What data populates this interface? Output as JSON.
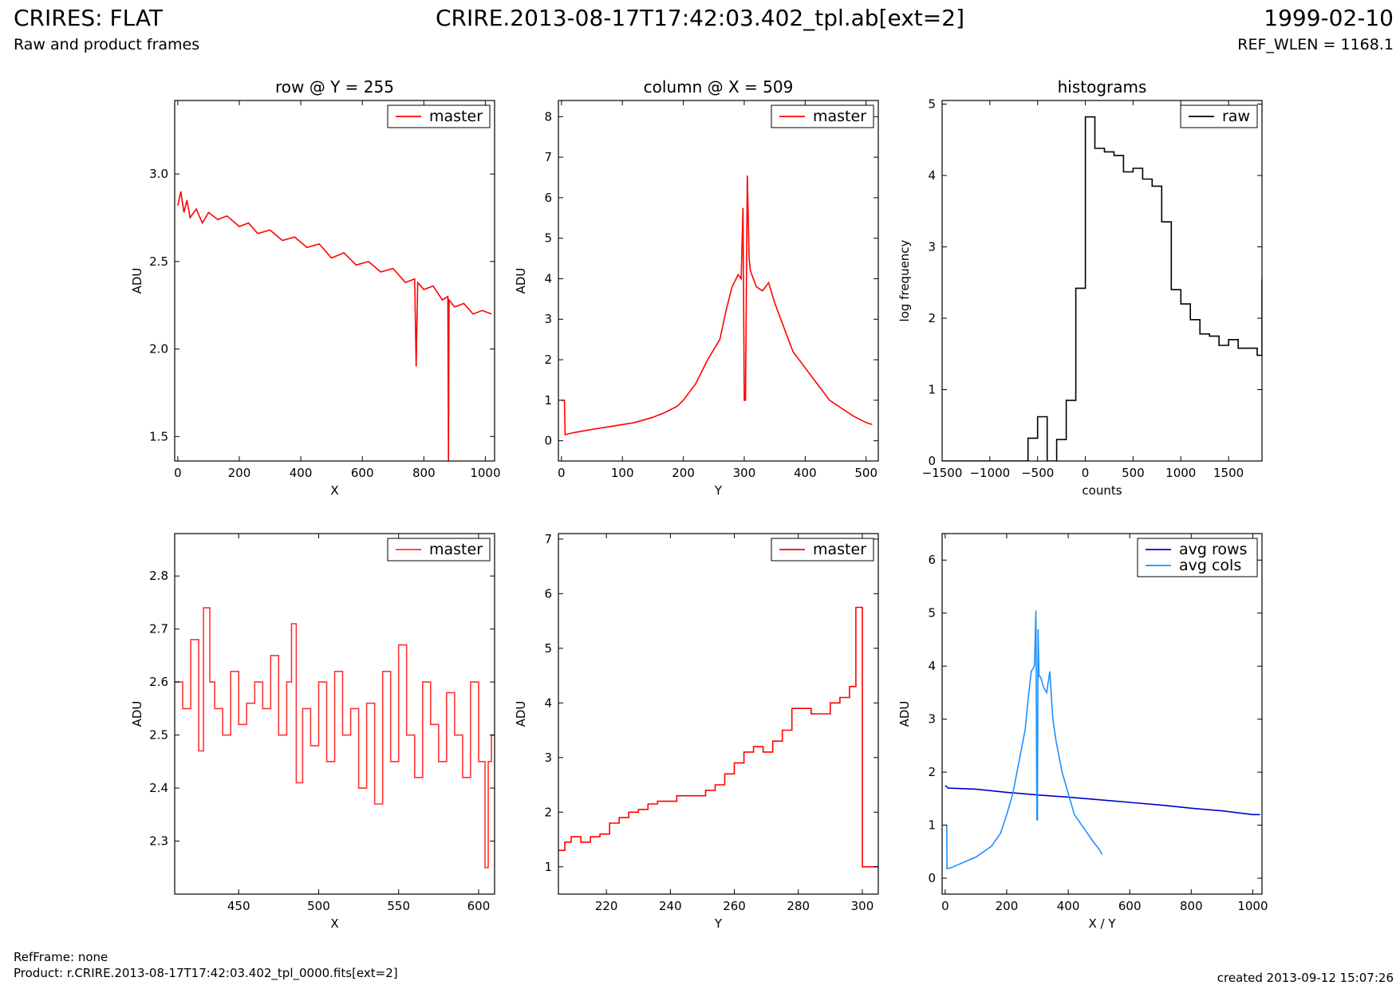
{
  "header": {
    "app_title": "CRIRES: FLAT",
    "subtitle": "Raw and product frames",
    "file_title": "CRIRE.2013-08-17T17:42:03.402_tpl.ab[ext=2]",
    "date": "1999-02-10",
    "ref_wlen": "REF_WLEN = 1168.1"
  },
  "footer": {
    "ref_frame": "RefFrame: none",
    "product": "Product: r.CRIRE.2013-08-17T17:42:03.402_tpl_0000.fits[ext=2]",
    "created": "created 2013-09-12 15:07:26"
  },
  "chart_data": [
    {
      "id": "row-full",
      "type": "line",
      "title": "row @ Y = 255",
      "xlabel": "X",
      "ylabel": "ADU",
      "xlim": [
        -10,
        1030
      ],
      "ylim": [
        1.36,
        3.42
      ],
      "xticks": [
        0,
        200,
        400,
        600,
        800,
        1000
      ],
      "yticks": [
        1.5,
        2.0,
        2.5,
        3.0
      ],
      "ytick_labels": [
        "1.5",
        "2.0",
        "2.5",
        "3.0"
      ],
      "legend": "upper right",
      "series": [
        {
          "name": "master",
          "color": "#ff0000",
          "x": [
            0,
            10,
            20,
            30,
            40,
            60,
            80,
            100,
            130,
            160,
            200,
            230,
            260,
            300,
            340,
            380,
            420,
            460,
            500,
            540,
            580,
            620,
            660,
            700,
            740,
            770,
            775,
            780,
            800,
            830,
            860,
            878,
            880,
            882,
            900,
            930,
            960,
            990,
            1020
          ],
          "y": [
            2.82,
            2.9,
            2.78,
            2.85,
            2.75,
            2.8,
            2.72,
            2.78,
            2.74,
            2.76,
            2.7,
            2.72,
            2.66,
            2.68,
            2.62,
            2.64,
            2.58,
            2.6,
            2.52,
            2.55,
            2.48,
            2.5,
            2.44,
            2.46,
            2.38,
            2.4,
            1.9,
            2.38,
            2.34,
            2.36,
            2.28,
            2.3,
            1.36,
            2.28,
            2.24,
            2.26,
            2.2,
            2.22,
            2.2
          ]
        }
      ]
    },
    {
      "id": "col-full",
      "type": "line",
      "title": "column @ X = 509",
      "xlabel": "Y",
      "ylabel": "ADU",
      "xlim": [
        -5,
        520
      ],
      "ylim": [
        -0.5,
        8.4
      ],
      "xticks": [
        0,
        100,
        200,
        300,
        400,
        500
      ],
      "yticks": [
        0,
        1,
        2,
        3,
        4,
        5,
        6,
        7,
        8
      ],
      "ytick_labels": [
        "0",
        "1",
        "2",
        "3",
        "4",
        "5",
        "6",
        "7",
        "8"
      ],
      "legend": "upper right",
      "series": [
        {
          "name": "master",
          "color": "#ff0000",
          "x": [
            0,
            5,
            6,
            20,
            50,
            80,
            100,
            120,
            150,
            170,
            190,
            200,
            220,
            240,
            260,
            270,
            280,
            290,
            295,
            298,
            300,
            302,
            305,
            308,
            310,
            320,
            330,
            340,
            350,
            360,
            370,
            380,
            400,
            420,
            440,
            460,
            480,
            500,
            510
          ],
          "y": [
            1.0,
            1.0,
            0.15,
            0.2,
            0.28,
            0.35,
            0.4,
            0.45,
            0.58,
            0.7,
            0.85,
            1.0,
            1.4,
            2.0,
            2.5,
            3.2,
            3.8,
            4.1,
            4.0,
            5.75,
            1.0,
            1.0,
            6.55,
            4.5,
            4.2,
            3.8,
            3.7,
            3.9,
            3.4,
            3.0,
            2.6,
            2.2,
            1.8,
            1.4,
            1.0,
            0.8,
            0.6,
            0.45,
            0.4
          ]
        }
      ]
    },
    {
      "id": "hist",
      "type": "line",
      "title": "histograms",
      "xlabel": "counts",
      "ylabel": "log frequency",
      "xlim": [
        -1500,
        1850
      ],
      "ylim": [
        0,
        5.05
      ],
      "xticks": [
        -1500,
        -1000,
        -500,
        0,
        500,
        1000,
        1500
      ],
      "xtick_labels": [
        "−1500",
        "−1000",
        "−500",
        "0",
        "500",
        "1000",
        "1500"
      ],
      "yticks": [
        0,
        1,
        2,
        3,
        4,
        5
      ],
      "ytick_labels": [
        "0",
        "1",
        "2",
        "3",
        "4",
        "5"
      ],
      "legend": "upper right",
      "series": [
        {
          "name": "raw",
          "color": "#000000",
          "step": true,
          "x": [
            -1500,
            -600,
            -500,
            -400,
            -300,
            -200,
            -100,
            0,
            100,
            200,
            300,
            400,
            500,
            600,
            700,
            800,
            900,
            1000,
            1100,
            1200,
            1300,
            1400,
            1500,
            1600,
            1700,
            1800,
            1850
          ],
          "y": [
            0,
            0.32,
            0.62,
            0,
            0.3,
            0.85,
            2.42,
            4.82,
            4.38,
            4.33,
            4.28,
            4.05,
            4.1,
            3.95,
            3.85,
            3.35,
            2.4,
            2.2,
            1.98,
            1.78,
            1.75,
            1.62,
            1.7,
            1.58,
            1.58,
            1.48,
            2.55
          ]
        }
      ]
    },
    {
      "id": "row-zoom",
      "type": "line",
      "title": "",
      "xlabel": "X",
      "ylabel": "ADU",
      "xlim": [
        410,
        610
      ],
      "ylim": [
        2.2,
        2.88
      ],
      "xticks": [
        450,
        500,
        550,
        600
      ],
      "yticks": [
        2.3,
        2.4,
        2.5,
        2.6,
        2.7,
        2.8
      ],
      "ytick_labels": [
        "2.3",
        "2.4",
        "2.5",
        "2.6",
        "2.7",
        "2.8"
      ],
      "legend": "upper right",
      "series": [
        {
          "name": "master",
          "color": "#ff3333",
          "step": true,
          "x": [
            410,
            415,
            420,
            425,
            428,
            432,
            435,
            440,
            445,
            450,
            455,
            460,
            465,
            470,
            475,
            480,
            483,
            486,
            490,
            495,
            500,
            505,
            510,
            515,
            520,
            525,
            530,
            535,
            540,
            545,
            550,
            555,
            560,
            565,
            570,
            575,
            580,
            585,
            590,
            595,
            600,
            604,
            606,
            608,
            610
          ],
          "y": [
            2.6,
            2.55,
            2.68,
            2.47,
            2.74,
            2.6,
            2.55,
            2.5,
            2.62,
            2.52,
            2.56,
            2.6,
            2.55,
            2.65,
            2.5,
            2.6,
            2.71,
            2.41,
            2.55,
            2.48,
            2.6,
            2.45,
            2.62,
            2.5,
            2.55,
            2.4,
            2.56,
            2.37,
            2.62,
            2.45,
            2.67,
            2.5,
            2.42,
            2.6,
            2.52,
            2.45,
            2.58,
            2.5,
            2.42,
            2.6,
            2.45,
            2.25,
            2.45,
            2.5,
            2.5
          ]
        }
      ]
    },
    {
      "id": "col-zoom",
      "type": "line",
      "title": "",
      "xlabel": "Y",
      "ylabel": "ADU",
      "xlim": [
        205,
        305
      ],
      "ylim": [
        0.5,
        7.1
      ],
      "xticks": [
        220,
        240,
        260,
        280,
        300
      ],
      "yticks": [
        1,
        2,
        3,
        4,
        5,
        6,
        7
      ],
      "ytick_labels": [
        "1",
        "2",
        "3",
        "4",
        "5",
        "6",
        "7"
      ],
      "legend": "upper right",
      "series": [
        {
          "name": "master",
          "color": "#ff0000",
          "step": true,
          "x": [
            205,
            207,
            209,
            212,
            215,
            218,
            221,
            224,
            227,
            230,
            233,
            236,
            239,
            242,
            245,
            248,
            251,
            254,
            257,
            260,
            263,
            266,
            269,
            272,
            275,
            278,
            281,
            284,
            287,
            290,
            293,
            296,
            298,
            299,
            300,
            302,
            305
          ],
          "y": [
            1.3,
            1.45,
            1.55,
            1.45,
            1.55,
            1.6,
            1.8,
            1.9,
            2.0,
            2.05,
            2.15,
            2.2,
            2.2,
            2.3,
            2.3,
            2.3,
            2.4,
            2.5,
            2.7,
            2.9,
            3.1,
            3.2,
            3.1,
            3.3,
            3.5,
            3.9,
            3.9,
            3.8,
            3.8,
            4.0,
            4.1,
            4.3,
            5.75,
            5.75,
            1.0,
            1.0,
            1.0
          ]
        }
      ]
    },
    {
      "id": "avg",
      "type": "line",
      "title": "",
      "xlabel": "X / Y",
      "ylabel": "ADU",
      "xlim": [
        -10,
        1030
      ],
      "ylim": [
        -0.3,
        6.5
      ],
      "xticks": [
        0,
        200,
        400,
        600,
        800,
        1000
      ],
      "yticks": [
        0,
        1,
        2,
        3,
        4,
        5,
        6
      ],
      "ytick_labels": [
        "0",
        "1",
        "2",
        "3",
        "4",
        "5",
        "6"
      ],
      "legend": "upper right",
      "series": [
        {
          "name": "avg rows",
          "color": "#0000cc",
          "x": [
            0,
            10,
            100,
            200,
            300,
            400,
            500,
            600,
            700,
            800,
            900,
            1000,
            1024
          ],
          "y": [
            1.75,
            1.7,
            1.68,
            1.62,
            1.57,
            1.53,
            1.48,
            1.43,
            1.38,
            1.32,
            1.27,
            1.2,
            1.2
          ]
        },
        {
          "name": "avg cols",
          "color": "#1e90ff",
          "x": [
            0,
            5,
            6,
            20,
            60,
            100,
            150,
            180,
            200,
            220,
            240,
            260,
            270,
            280,
            290,
            295,
            298,
            300,
            302,
            305,
            310,
            320,
            330,
            340,
            350,
            360,
            380,
            400,
            420,
            450,
            480,
            500,
            510
          ],
          "y": [
            1.0,
            1.0,
            0.18,
            0.2,
            0.3,
            0.4,
            0.6,
            0.85,
            1.2,
            1.6,
            2.2,
            2.8,
            3.4,
            3.9,
            4.0,
            5.05,
            1.1,
            1.1,
            4.7,
            3.8,
            3.8,
            3.6,
            3.5,
            3.9,
            3.0,
            2.6,
            2.0,
            1.6,
            1.2,
            0.95,
            0.7,
            0.55,
            0.45
          ]
        }
      ]
    }
  ]
}
